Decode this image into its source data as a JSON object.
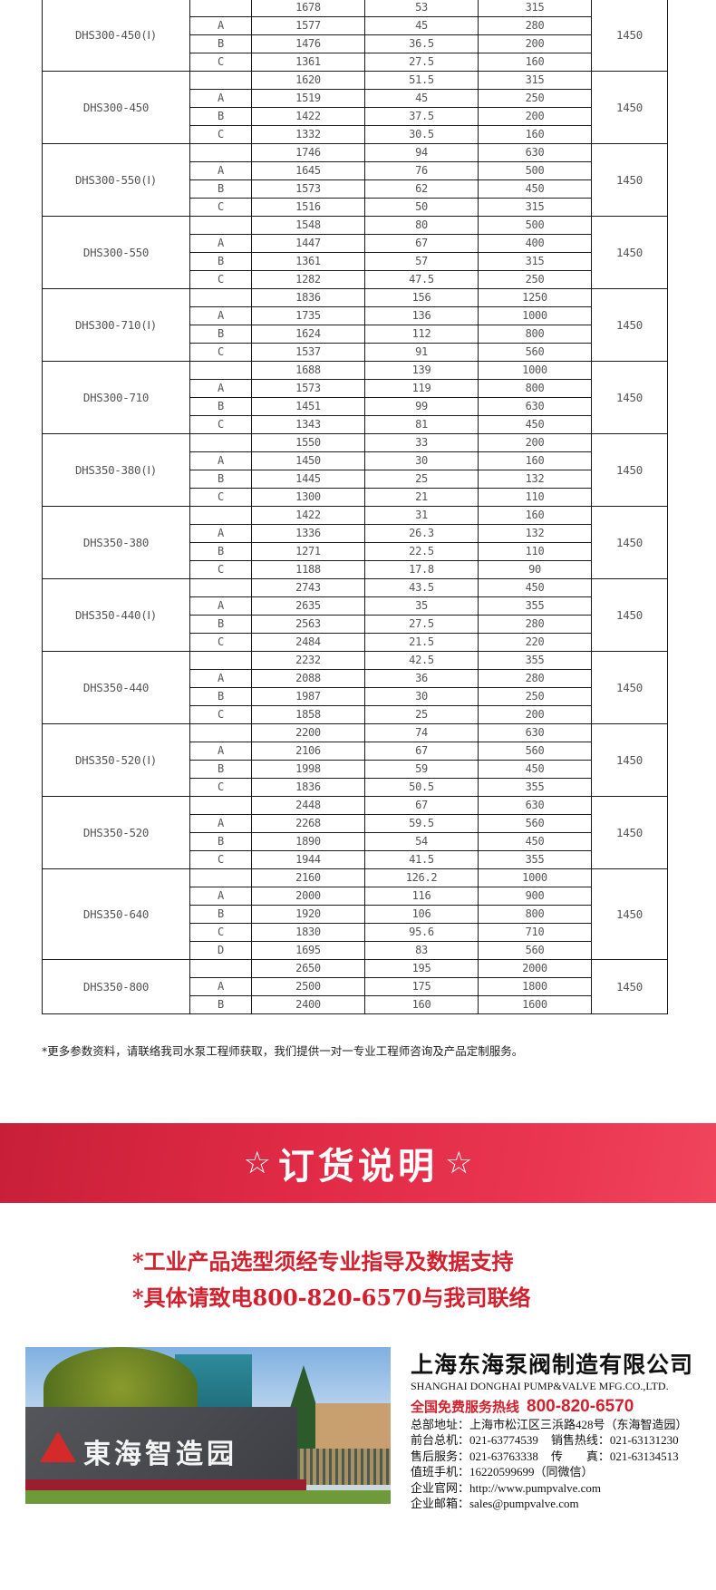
{
  "table": {
    "groups": [
      {
        "model": "DHS300-450(Ⅰ)",
        "speed": "1450",
        "rows": [
          [
            "",
            "1678",
            "53",
            "315"
          ],
          [
            "A",
            "1577",
            "45",
            "280"
          ],
          [
            "B",
            "1476",
            "36.5",
            "200"
          ],
          [
            "C",
            "1361",
            "27.5",
            "160"
          ]
        ]
      },
      {
        "model": "DHS300-450",
        "speed": "1450",
        "rows": [
          [
            "",
            "1620",
            "51.5",
            "315"
          ],
          [
            "A",
            "1519",
            "45",
            "250"
          ],
          [
            "B",
            "1422",
            "37.5",
            "200"
          ],
          [
            "C",
            "1332",
            "30.5",
            "160"
          ]
        ]
      },
      {
        "model": "DHS300-550(Ⅰ)",
        "speed": "1450",
        "rows": [
          [
            "",
            "1746",
            "94",
            "630"
          ],
          [
            "A",
            "1645",
            "76",
            "500"
          ],
          [
            "B",
            "1573",
            "62",
            "450"
          ],
          [
            "C",
            "1516",
            "50",
            "315"
          ]
        ]
      },
      {
        "model": "DHS300-550",
        "speed": "1450",
        "rows": [
          [
            "",
            "1548",
            "80",
            "500"
          ],
          [
            "A",
            "1447",
            "67",
            "400"
          ],
          [
            "B",
            "1361",
            "57",
            "315"
          ],
          [
            "C",
            "1282",
            "47.5",
            "250"
          ]
        ]
      },
      {
        "model": "DHS300-710(Ⅰ)",
        "speed": "1450",
        "rows": [
          [
            "",
            "1836",
            "156",
            "1250"
          ],
          [
            "A",
            "1735",
            "136",
            "1000"
          ],
          [
            "B",
            "1624",
            "112",
            "800"
          ],
          [
            "C",
            "1537",
            "91",
            "560"
          ]
        ]
      },
      {
        "model": "DHS300-710",
        "speed": "1450",
        "rows": [
          [
            "",
            "1688",
            "139",
            "1000"
          ],
          [
            "A",
            "1573",
            "119",
            "800"
          ],
          [
            "B",
            "1451",
            "99",
            "630"
          ],
          [
            "C",
            "1343",
            "81",
            "450"
          ]
        ]
      },
      {
        "model": "DHS350-380(Ⅰ)",
        "speed": "1450",
        "rows": [
          [
            "",
            "1550",
            "33",
            "200"
          ],
          [
            "A",
            "1450",
            "30",
            "160"
          ],
          [
            "B",
            "1445",
            "25",
            "132"
          ],
          [
            "C",
            "1300",
            "21",
            "110"
          ]
        ]
      },
      {
        "model": "DHS350-380",
        "speed": "1450",
        "rows": [
          [
            "",
            "1422",
            "31",
            "160"
          ],
          [
            "A",
            "1336",
            "26.3",
            "132"
          ],
          [
            "B",
            "1271",
            "22.5",
            "110"
          ],
          [
            "C",
            "1188",
            "17.8",
            "90"
          ]
        ]
      },
      {
        "model": "DHS350-440(Ⅰ)",
        "speed": "1450",
        "rows": [
          [
            "",
            "2743",
            "43.5",
            "450"
          ],
          [
            "A",
            "2635",
            "35",
            "355"
          ],
          [
            "B",
            "2563",
            "27.5",
            "280"
          ],
          [
            "C",
            "2484",
            "21.5",
            "220"
          ]
        ]
      },
      {
        "model": "DHS350-440",
        "speed": "1450",
        "rows": [
          [
            "",
            "2232",
            "42.5",
            "355"
          ],
          [
            "A",
            "2088",
            "36",
            "280"
          ],
          [
            "B",
            "1987",
            "30",
            "250"
          ],
          [
            "C",
            "1858",
            "25",
            "200"
          ]
        ]
      },
      {
        "model": "DHS350-520(Ⅰ)",
        "speed": "1450",
        "rows": [
          [
            "",
            "2200",
            "74",
            "630"
          ],
          [
            "A",
            "2106",
            "67",
            "560"
          ],
          [
            "B",
            "1998",
            "59",
            "450"
          ],
          [
            "C",
            "1836",
            "50.5",
            "355"
          ]
        ]
      },
      {
        "model": "DHS350-520",
        "speed": "1450",
        "rows": [
          [
            "",
            "2448",
            "67",
            "630"
          ],
          [
            "A",
            "2268",
            "59.5",
            "560"
          ],
          [
            "B",
            "1890",
            "54",
            "450"
          ],
          [
            "C",
            "1944",
            "41.5",
            "355"
          ]
        ]
      },
      {
        "model": "DHS350-640",
        "speed": "1450",
        "rows": [
          [
            "",
            "2160",
            "126.2",
            "1000"
          ],
          [
            "A",
            "2000",
            "116",
            "900"
          ],
          [
            "B",
            "1920",
            "106",
            "800"
          ],
          [
            "C",
            "1830",
            "95.6",
            "710"
          ],
          [
            "D",
            "1695",
            "83",
            "560"
          ]
        ]
      },
      {
        "model": "DHS350-800",
        "speed": "1450",
        "rows": [
          [
            "",
            "2650",
            "195",
            "2000"
          ],
          [
            "A",
            "2500",
            "175",
            "1800"
          ],
          [
            "B",
            "2400",
            "160",
            "1600"
          ]
        ]
      }
    ]
  },
  "footnote": "*更多参数资料，请联络我司水泵工程师获取，我们提供一对一专业工程师咨询及产品定制服务。",
  "banner": {
    "star": "☆",
    "title": "订货说明",
    "color": "#e02a45"
  },
  "notes": [
    "*工业产品选型须经专业指导及数据支持",
    "*具体请致电800-820-6570与我司联络"
  ],
  "photo": {
    "sign_text": "東海智造园"
  },
  "company": {
    "name_cn": "上海东海泵阀制造有限公司",
    "name_en": "SHANGHAI DONGHAI PUMP&VALVE MFG.CO.,LTD.",
    "hotline_label": "全国免费服务热线",
    "hotline": "800-820-6570",
    "address": "总部地址：上海市松江区三浜路428号（东海智造园）",
    "front_desk": "前台总机：021-63774539",
    "sales": "销售热线：021-63131230",
    "after_sales": "售后服务：021-63763338",
    "fax": "传　　真：021-63134513",
    "mobile": "值班手机：16220599699（同微信）",
    "website": "企业官网：http://www.pumpvalve.com",
    "email": "企业邮箱：sales@pumpvalve.com"
  }
}
